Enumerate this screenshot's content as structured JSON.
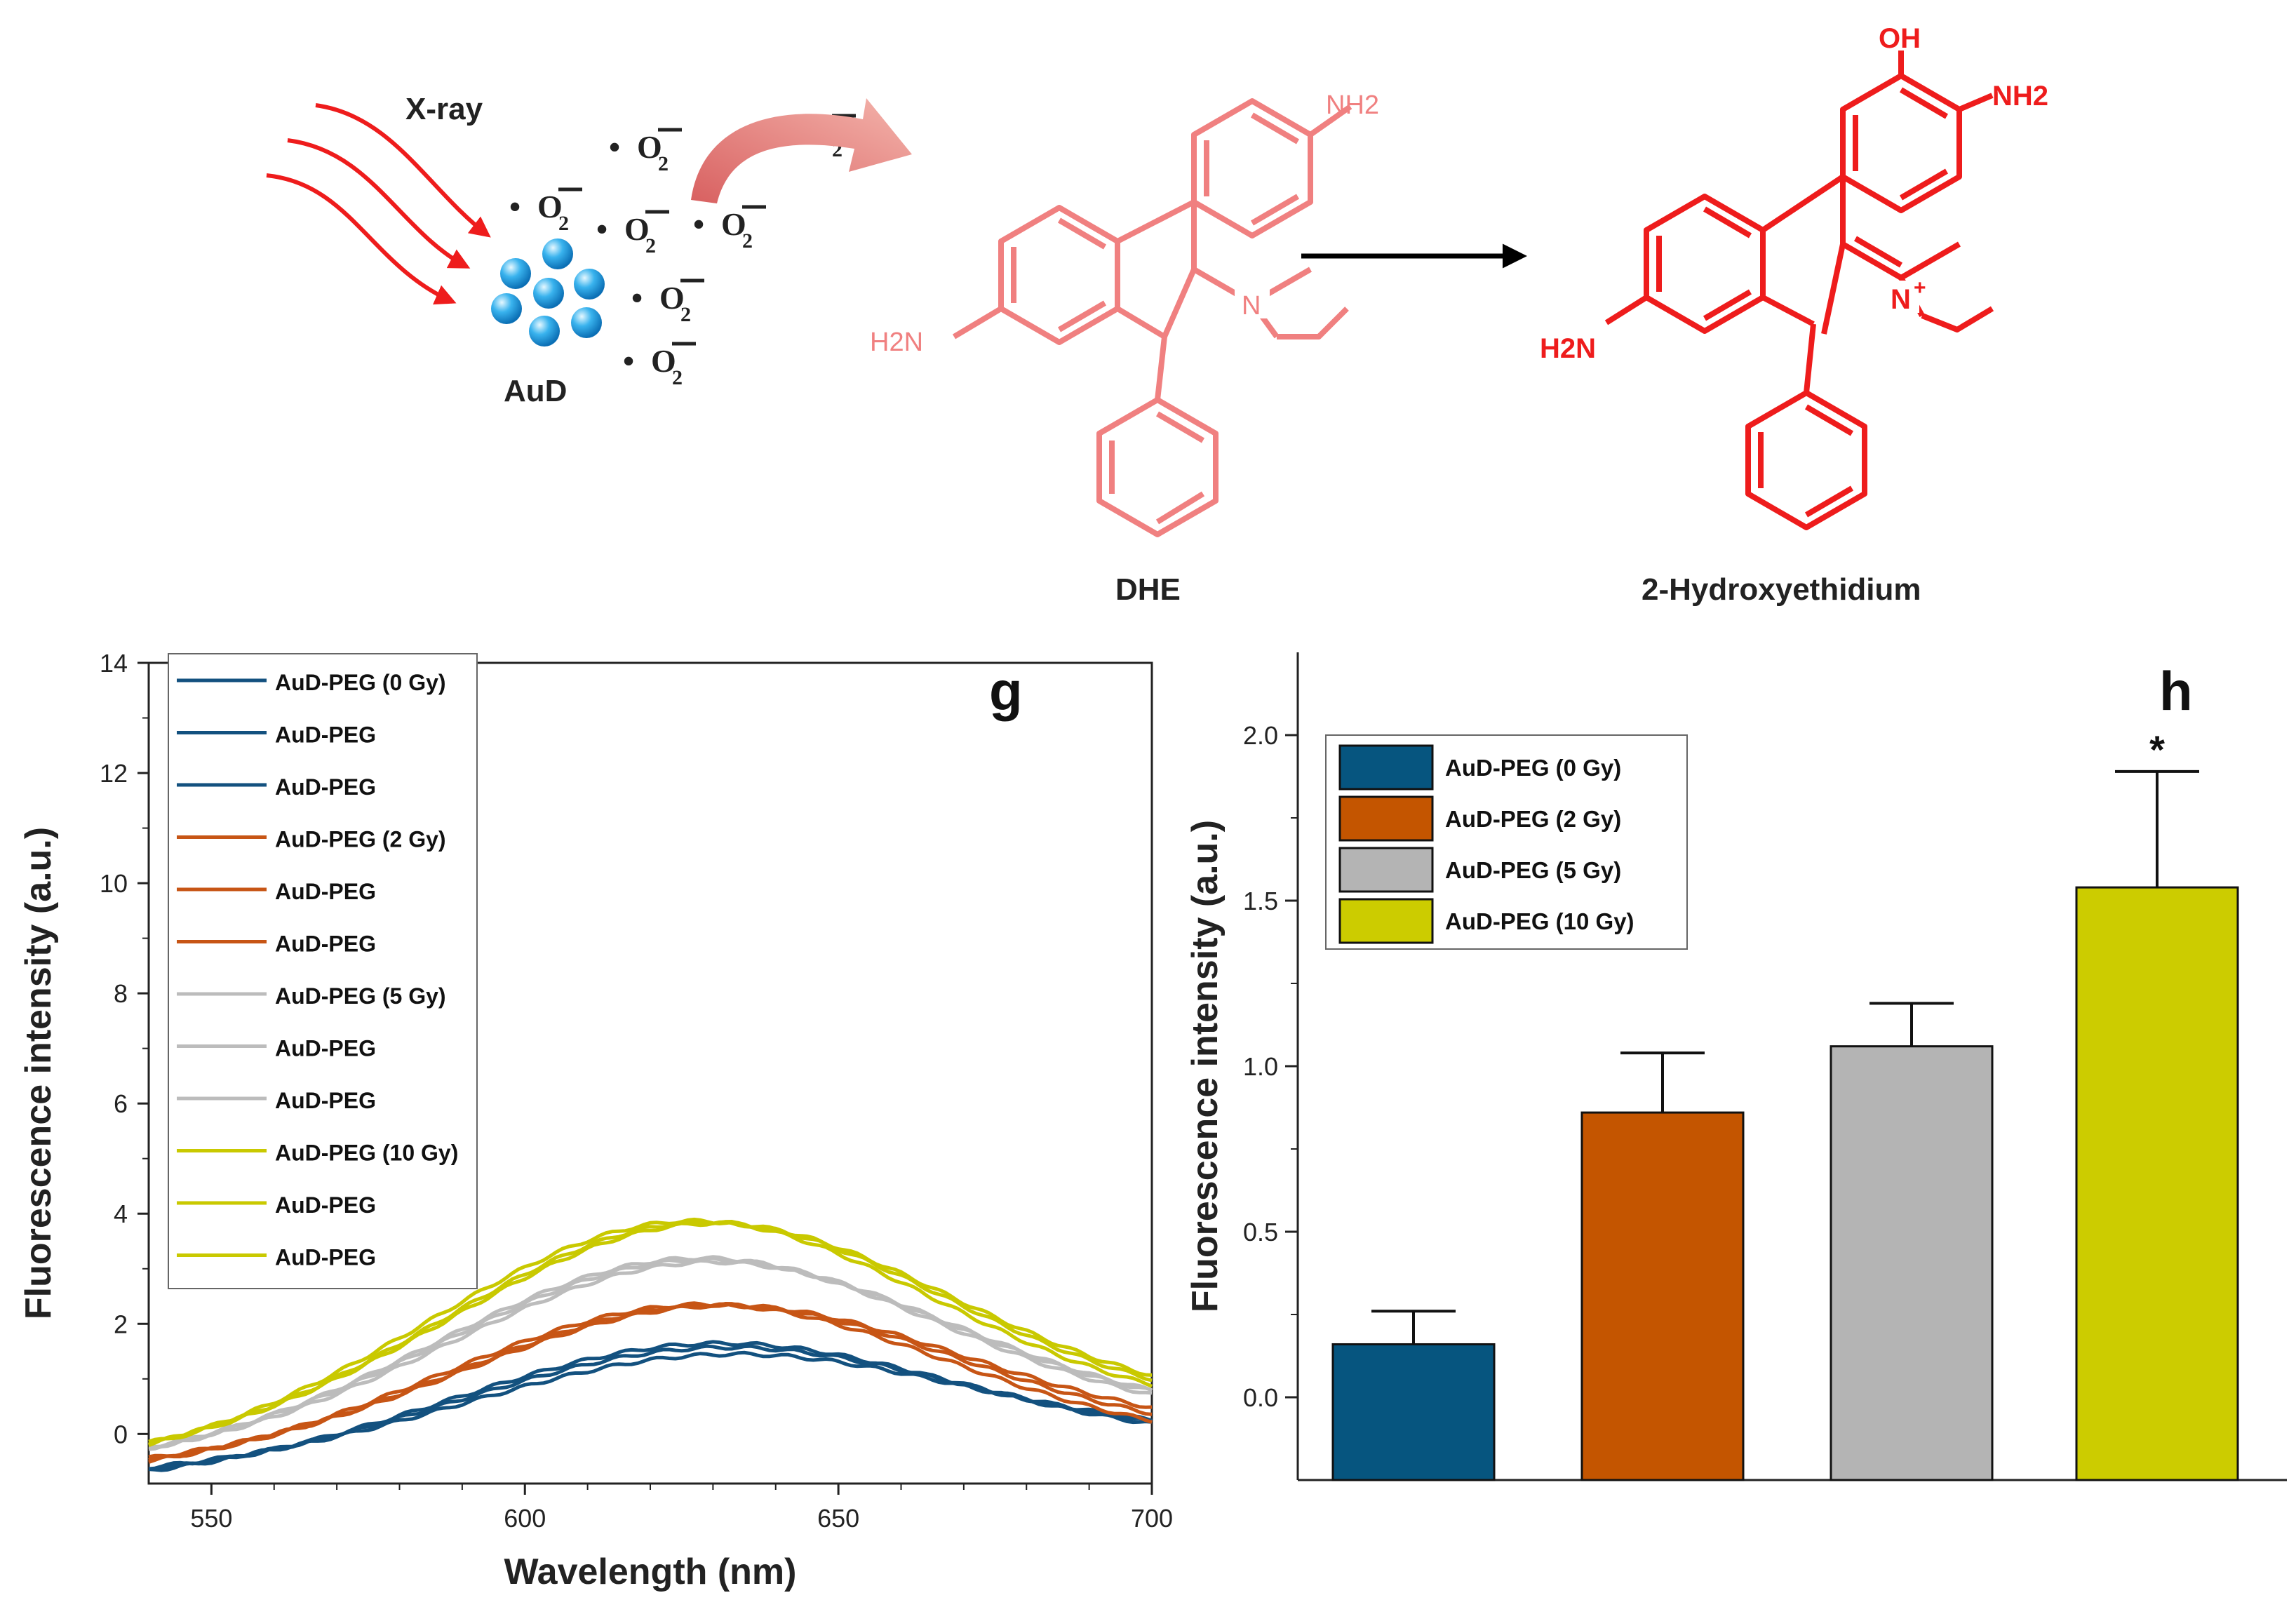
{
  "scheme": {
    "xray_label": "X-ray",
    "aud_label": "AuD",
    "superoxide_dot": "•",
    "superoxide_O": "O",
    "superoxide_sub": "2",
    "superoxide_charge": "−",
    "dhe_label": "DHE",
    "product_label": "2-Hydroxyethidium",
    "dhe_nh2_top": "NH2",
    "dhe_h2n_left": "H2N",
    "dhe_n": "N",
    "prod_oh": "OH",
    "prod_nh2": "NH2",
    "prod_h2n": "H2N",
    "prod_n": "N",
    "prod_plus": "+",
    "colors": {
      "arrow_red": "#ee1c1c",
      "dhe_pink": "#f08080",
      "product_red": "#ee1c1c",
      "sphere_blue": "#2fa8e8"
    }
  },
  "chart_data": [
    {
      "type": "line",
      "panel_label": "g",
      "title": "",
      "xlabel": "Wavelength (nm)",
      "ylabel": "Fluorescence intensity (a.u.)",
      "xlim": [
        540,
        700
      ],
      "ylim": [
        -0.9,
        14
      ],
      "xticks": [
        550,
        600,
        650,
        700
      ],
      "yticks": [
        0,
        2,
        4,
        6,
        8,
        10,
        12,
        14
      ],
      "series_model": "gaussian peak with linear baseline; values in data units",
      "series": [
        {
          "name": "AuD-PEG (0 Gy)",
          "color": "#13517f",
          "peak": 1.9,
          "center": 630,
          "start": -0.85,
          "end": -0.25
        },
        {
          "name": "AuD-PEG",
          "color": "#13517f",
          "peak": 1.8,
          "center": 631,
          "start": -0.8,
          "end": -0.2
        },
        {
          "name": "AuD-PEG",
          "color": "#13517f",
          "peak": 1.65,
          "center": 632,
          "start": -0.75,
          "end": -0.15
        },
        {
          "name": "AuD-PEG (2 Gy)",
          "color": "#c75515",
          "peak": 2.6,
          "center": 628,
          "start": -0.75,
          "end": -0.3
        },
        {
          "name": "AuD-PEG",
          "color": "#c75515",
          "peak": 2.55,
          "center": 630,
          "start": -0.7,
          "end": -0.2
        },
        {
          "name": "AuD-PEG",
          "color": "#c75515",
          "peak": 2.5,
          "center": 631,
          "start": -0.65,
          "end": -0.1
        },
        {
          "name": "AuD-PEG (5 Gy)",
          "color": "#bcbcbc",
          "peak": 3.3,
          "center": 627,
          "start": -0.6,
          "end": 0.1
        },
        {
          "name": "AuD-PEG",
          "color": "#bcbcbc",
          "peak": 3.25,
          "center": 628,
          "start": -0.55,
          "end": 0.15
        },
        {
          "name": "AuD-PEG",
          "color": "#bcbcbc",
          "peak": 3.2,
          "center": 629,
          "start": -0.55,
          "end": 0.15
        },
        {
          "name": "AuD-PEG (10 Gy)",
          "color": "#c9c900",
          "peak": 3.95,
          "center": 626,
          "start": -0.6,
          "end": 0.2
        },
        {
          "name": "AuD-PEG",
          "color": "#c9c900",
          "peak": 3.9,
          "center": 628,
          "start": -0.55,
          "end": 0.25
        },
        {
          "name": "AuD-PEG",
          "color": "#c9c900",
          "peak": 3.85,
          "center": 629,
          "start": -0.5,
          "end": 0.3
        }
      ]
    },
    {
      "type": "bar",
      "panel_label": "h",
      "title": "",
      "xlabel": "",
      "ylabel": "Fluorescence intensity (a.u.)",
      "ylim": [
        -0.25,
        2.25
      ],
      "yticks": [
        0.0,
        0.5,
        1.0,
        1.5,
        2.0
      ],
      "ytick_labels": [
        "0.0",
        "0.5",
        "1.0",
        "1.5",
        "2.0"
      ],
      "categories": [
        "AuD-PEG (0 Gy)",
        "AuD-PEG (2 Gy)",
        "AuD-PEG (5 Gy)",
        "AuD-PEG (10 Gy)"
      ],
      "values": [
        0.16,
        0.86,
        1.06,
        1.54
      ],
      "errors": [
        0.1,
        0.18,
        0.13,
        0.35
      ],
      "colors": [
        "#06557f",
        "#c45500",
        "#b4b4b4",
        "#cccc00"
      ],
      "annotations": [
        {
          "category_index": 3,
          "text": "*"
        }
      ]
    }
  ]
}
